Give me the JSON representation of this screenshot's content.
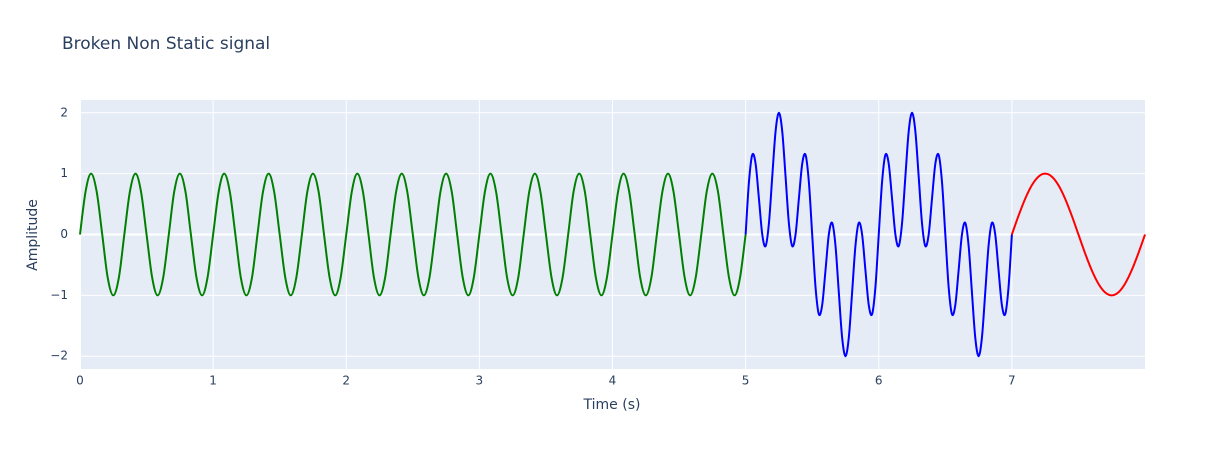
{
  "chart_data": {
    "type": "line",
    "title": "Broken Non Static signal",
    "x_label": "Time (s)",
    "y_label": "Amplitude",
    "xlim": [
      0,
      8
    ],
    "ylim": [
      -2.21,
      2.21
    ],
    "xticks": [
      0,
      1,
      2,
      3,
      4,
      5,
      6,
      7
    ],
    "yticks": [
      {
        "value": -2,
        "label": "−2"
      },
      {
        "value": -1,
        "label": "−1"
      },
      0,
      1,
      2
    ],
    "grid": true,
    "series": [
      {
        "color": "#008000",
        "x": [
          0,
          0.042,
          0.083,
          0.125,
          0.167,
          0.208,
          0.25,
          0.292,
          0.333,
          0.375,
          0.417,
          0.458,
          0.5,
          0.542,
          0.583,
          0.625,
          0.667,
          0.708,
          0.75,
          0.792,
          0.833,
          0.875,
          0.917,
          0.958,
          1,
          1.042,
          1.083,
          1.125,
          1.167,
          1.208,
          1.25,
          1.292,
          1.333,
          1.375,
          1.417,
          1.458,
          1.5,
          1.542,
          1.583,
          1.625,
          1.667,
          1.708,
          1.75,
          1.792,
          1.833,
          1.875,
          1.917,
          1.958,
          2,
          2.042,
          2.083,
          2.125,
          2.167,
          2.208,
          2.25,
          2.292,
          2.333,
          2.375,
          2.417,
          2.458,
          2.5,
          2.542,
          2.583,
          2.625,
          2.667,
          2.708,
          2.75,
          2.792,
          2.833,
          2.875,
          2.917,
          2.958,
          3,
          3.042,
          3.083,
          3.125,
          3.167,
          3.208,
          3.25,
          3.292,
          3.333,
          3.375,
          3.417,
          3.458,
          3.5,
          3.542,
          3.583,
          3.625,
          3.667,
          3.708,
          3.75,
          3.792,
          3.833,
          3.875,
          3.917,
          3.958,
          4,
          4.042,
          4.083,
          4.125,
          4.167,
          4.208,
          4.25,
          4.292,
          4.333,
          4.375,
          4.417,
          4.458,
          4.5,
          4.542,
          4.583,
          4.625,
          4.667,
          4.708,
          4.75,
          4.792,
          4.833,
          4.875,
          4.917,
          4.958,
          5
        ],
        "values": [
          0,
          0.707,
          1,
          0.707,
          0,
          -0.707,
          -1,
          -0.707,
          0,
          0.707,
          1,
          0.707,
          0,
          -0.707,
          -1,
          -0.707,
          0,
          0.707,
          1,
          0.707,
          0,
          -0.707,
          -1,
          -0.707,
          0,
          0.707,
          1,
          0.707,
          0,
          -0.707,
          -1,
          -0.707,
          0,
          0.707,
          1,
          0.707,
          0,
          -0.707,
          -1,
          -0.707,
          0,
          0.707,
          1,
          0.707,
          0,
          -0.707,
          -1,
          -0.707,
          0,
          0.707,
          1,
          0.707,
          0,
          -0.707,
          -1,
          -0.707,
          0,
          0.707,
          1,
          0.707,
          0,
          -0.707,
          -1,
          -0.707,
          0,
          0.707,
          1,
          0.707,
          0,
          -0.707,
          -1,
          -0.707,
          0,
          0.707,
          1,
          0.707,
          0,
          -0.707,
          -1,
          -0.707,
          0,
          0.707,
          1,
          0.707,
          0,
          -0.707,
          -1,
          -0.707,
          0,
          0.707,
          1,
          0.707,
          0,
          -0.707,
          -1,
          -0.707,
          0,
          0.707,
          1,
          0.707,
          0,
          -0.707,
          -1,
          -0.707,
          0,
          0.707,
          1,
          0.707,
          0,
          -0.707,
          -1,
          -0.707,
          0,
          0.707,
          1,
          0.707,
          0,
          -0.707,
          -1,
          -0.707,
          0
        ]
      },
      {
        "color": "#0000ff",
        "x": [
          5,
          5.025,
          5.05,
          5.075,
          5.1,
          5.125,
          5.15,
          5.175,
          5.2,
          5.225,
          5.25,
          5.275,
          5.3,
          5.325,
          5.35,
          5.375,
          5.4,
          5.425,
          5.45,
          5.475,
          5.5,
          5.525,
          5.55,
          5.575,
          5.6,
          5.625,
          5.65,
          5.675,
          5.7,
          5.725,
          5.75,
          5.775,
          5.8,
          5.825,
          5.85,
          5.875,
          5.9,
          5.925,
          5.95,
          5.975,
          6,
          6.025,
          6.05,
          6.075,
          6.1,
          6.125,
          6.15,
          6.175,
          6.2,
          6.225,
          6.25,
          6.275,
          6.3,
          6.325,
          6.35,
          6.375,
          6.4,
          6.425,
          6.45,
          6.475,
          6.5,
          6.525,
          6.55,
          6.575,
          6.6,
          6.625,
          6.65,
          6.675,
          6.7,
          6.725,
          6.75,
          6.775,
          6.8,
          6.825,
          6.85,
          6.875,
          6.9,
          6.925,
          6.95,
          6.975,
          7
        ],
        "values": [
          0,
          0.863,
          1.309,
          1.161,
          0.588,
          0,
          -0.191,
          0.184,
          0.951,
          1.695,
          2,
          1.695,
          0.951,
          0.184,
          -0.191,
          0,
          0.588,
          1.161,
          1.309,
          0.863,
          0,
          -0.863,
          -1.309,
          -1.161,
          -0.588,
          0,
          0.191,
          -0.184,
          -0.951,
          -1.695,
          -2,
          -1.695,
          -0.951,
          -0.184,
          0.191,
          0,
          -0.588,
          -1.161,
          -1.309,
          -0.863,
          0,
          0.863,
          1.309,
          1.161,
          0.588,
          0,
          -0.191,
          0.184,
          0.951,
          1.695,
          2,
          1.695,
          0.951,
          0.184,
          -0.191,
          0,
          0.588,
          1.161,
          1.309,
          0.863,
          0,
          -0.863,
          -1.309,
          -1.161,
          -0.588,
          0,
          0.191,
          -0.184,
          -0.951,
          -1.695,
          -2,
          -1.695,
          -0.951,
          -0.184,
          0.191,
          0,
          -0.588,
          -1.161,
          -1.309,
          -0.863,
          0
        ]
      },
      {
        "color": "#ff0000",
        "x": [
          7,
          7.05,
          7.1,
          7.15,
          7.2,
          7.25,
          7.3,
          7.35,
          7.4,
          7.45,
          7.5,
          7.55,
          7.6,
          7.65,
          7.7,
          7.75,
          7.8,
          7.85,
          7.9,
          7.95,
          8
        ],
        "values": [
          0,
          0.309,
          0.588,
          0.809,
          0.951,
          1,
          0.951,
          0.809,
          0.588,
          0.309,
          0,
          -0.309,
          -0.588,
          -0.809,
          -0.951,
          -1,
          -0.951,
          -0.809,
          -0.588,
          -0.309,
          0
        ]
      }
    ]
  }
}
